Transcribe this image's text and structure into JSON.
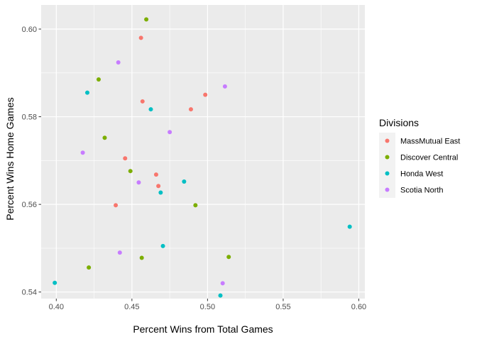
{
  "chart_data": {
    "type": "scatter",
    "title": "",
    "xlabel": "Percent Wins from Total Games",
    "ylabel": "Percent Wins Home Games",
    "xlim": [
      0.39,
      0.604
    ],
    "ylim": [
      0.5385,
      0.6055
    ],
    "xticks": [
      0.4,
      0.45,
      0.5,
      0.55,
      0.6
    ],
    "xtick_labels": [
      "0.40",
      "0.45",
      "0.50",
      "0.55",
      "0.60"
    ],
    "yticks": [
      0.54,
      0.56,
      0.58,
      0.6
    ],
    "ytick_labels": [
      "0.54",
      "0.56",
      "0.58",
      "0.60"
    ],
    "grid": true,
    "legend": {
      "title": "Divisions",
      "placement": "right"
    },
    "series": [
      {
        "name": "MassMutual East",
        "color": "#F8766D",
        "points": [
          [
            0.456,
            0.598
          ],
          [
            0.457,
            0.5835
          ],
          [
            0.489,
            0.5817
          ],
          [
            0.4985,
            0.585
          ],
          [
            0.4455,
            0.5705
          ],
          [
            0.466,
            0.5668
          ],
          [
            0.4675,
            0.5642
          ],
          [
            0.4393,
            0.5598
          ]
        ]
      },
      {
        "name": "Discover Central",
        "color": "#7CAE00",
        "points": [
          [
            0.4595,
            0.6022
          ],
          [
            0.428,
            0.5885
          ],
          [
            0.432,
            0.5752
          ],
          [
            0.449,
            0.5676
          ],
          [
            0.492,
            0.5598
          ],
          [
            0.514,
            0.548
          ],
          [
            0.4565,
            0.5478
          ],
          [
            0.4215,
            0.5456
          ]
        ]
      },
      {
        "name": "Honda West",
        "color": "#00BFC4",
        "points": [
          [
            0.4205,
            0.5855
          ],
          [
            0.4625,
            0.5817
          ],
          [
            0.4845,
            0.5652
          ],
          [
            0.469,
            0.5627
          ],
          [
            0.594,
            0.5549
          ],
          [
            0.4705,
            0.5505
          ],
          [
            0.399,
            0.5421
          ],
          [
            0.5085,
            0.5392
          ]
        ]
      },
      {
        "name": "Scotia North",
        "color": "#C77CFF",
        "points": [
          [
            0.441,
            0.5924
          ],
          [
            0.5115,
            0.5869
          ],
          [
            0.475,
            0.5765
          ],
          [
            0.4175,
            0.5718
          ],
          [
            0.4545,
            0.565
          ],
          [
            0.442,
            0.549
          ],
          [
            0.51,
            0.542
          ]
        ]
      }
    ]
  }
}
